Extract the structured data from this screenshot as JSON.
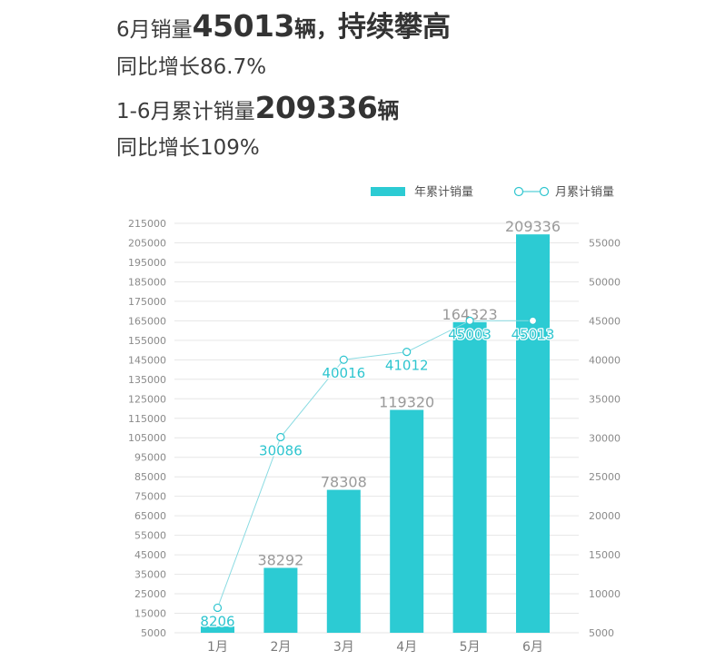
{
  "headline": {
    "line1": {
      "prefix": "6月销量",
      "number": "45013",
      "unit": "辆，",
      "emphasis": "持续攀高"
    },
    "line2": "同比增长86.7%",
    "line3": {
      "prefix": "1-6月累计销量",
      "number": "209336",
      "unit": "辆"
    },
    "line4": "同比增长109%"
  },
  "chart_data": {
    "type": "bar",
    "categories": [
      "1月",
      "2月",
      "3月",
      "4月",
      "5月",
      "6月"
    ],
    "series": [
      {
        "name": "年累计销量",
        "type": "bar",
        "axis": "left",
        "values": [
          8206,
          38292,
          78308,
          119320,
          164323,
          209336
        ],
        "color": "#2ccbd3"
      },
      {
        "name": "月累计销量",
        "type": "line",
        "axis": "right",
        "values": [
          8206,
          30086,
          40016,
          41012,
          45003,
          45013
        ],
        "color": "#2ec5cf"
      }
    ],
    "ylim_left": [
      5000,
      215000
    ],
    "yticks_left": [
      5000,
      15000,
      25000,
      35000,
      45000,
      55000,
      65000,
      75000,
      85000,
      95000,
      105000,
      115000,
      125000,
      135000,
      145000,
      155000,
      165000,
      175000,
      185000,
      195000,
      205000,
      215000
    ],
    "ylim_right": [
      5000,
      55000
    ],
    "yticks_right": [
      5000,
      10000,
      15000,
      20000,
      25000,
      30000,
      35000,
      40000,
      45000,
      50000,
      55000
    ],
    "grid": true,
    "legend": "top-right",
    "label_color_bar": "#9a9a9a",
    "grid_color": "#e6e6e6"
  }
}
